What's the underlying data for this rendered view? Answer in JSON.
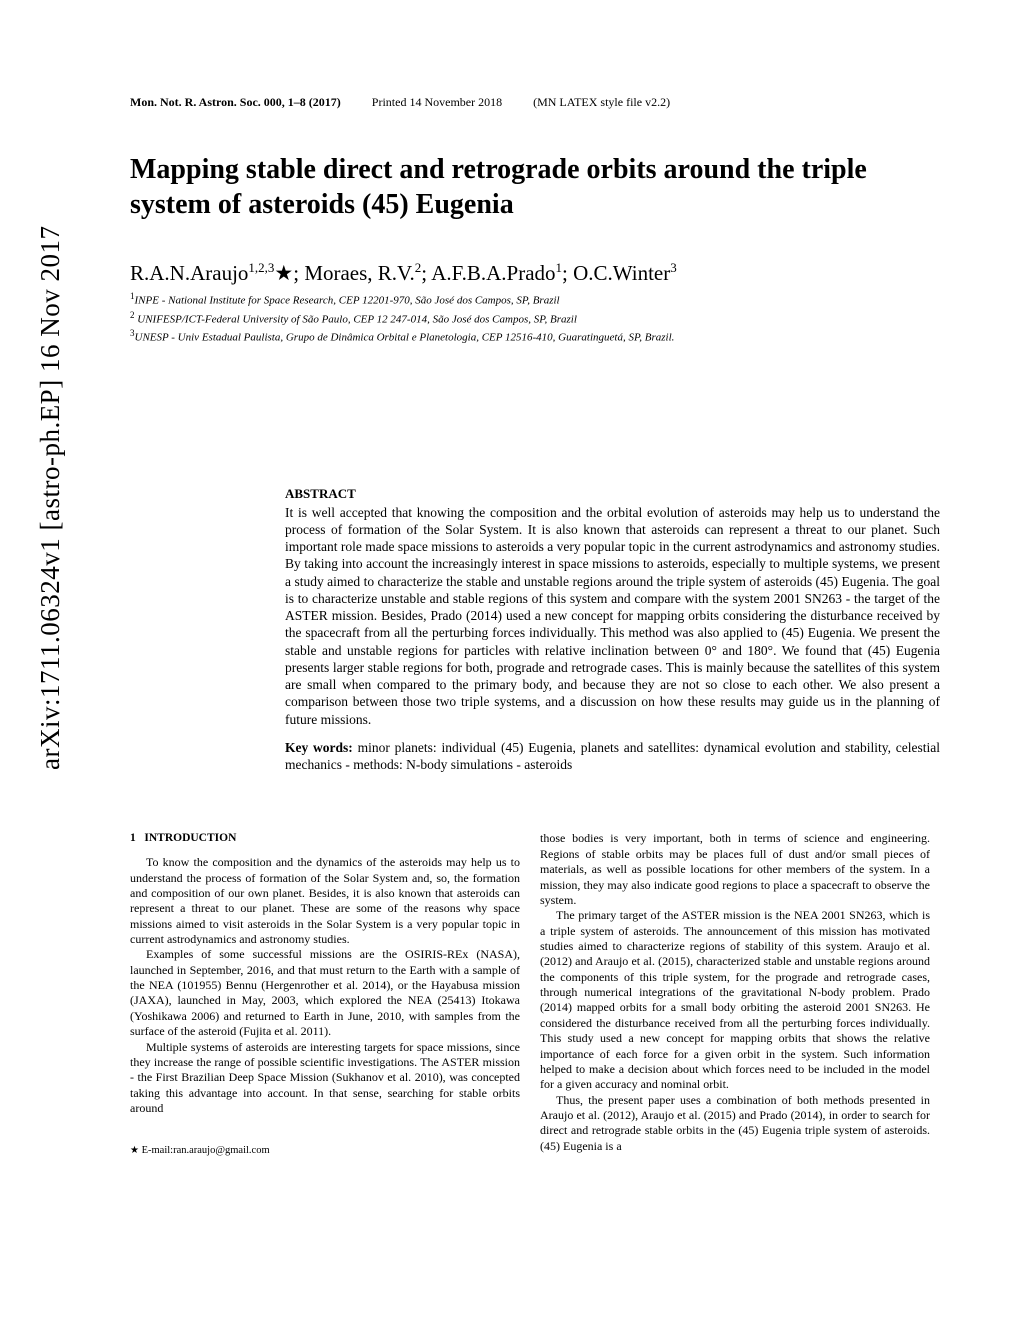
{
  "arxiv_stamp": "arXiv:1711.06324v1  [astro-ph.EP]  16 Nov 2017",
  "header": {
    "journal": "Mon. Not. R. Astron. Soc. 000, 1–8 (2017)",
    "printed": "Printed 14 November 2018",
    "style": "(MN LATEX style file v2.2)"
  },
  "title": "Mapping stable direct and retrograde orbits around the triple system of asteroids (45) Eugenia",
  "authors_html": "R.A.N.Araujo<sup>1,2,3</sup>*; Moraes, R.V.<sup>2</sup>; A.F.B.A.Prado<sup>1</sup>; O.C.Winter<sup>3</sup>",
  "affiliations": {
    "a1": "INPE - National Institute for Space Research, CEP 12201-970, São José dos Campos, SP, Brazil",
    "a2": " UNIFESP/ICT-Federal University of São Paulo, CEP 12 247-014, São José dos Campos, SP, Brazil",
    "a3": "UNESP - Univ Estadual Paulista, Grupo de Dinâmica Orbital e Planetologia, CEP 12516-410, Guaratinguetá, SP, Brazil."
  },
  "abstract": {
    "label": "ABSTRACT",
    "text": "It is well accepted that knowing the composition and the orbital evolution of asteroids may help us to understand the process of formation of the Solar System. It is also known that asteroids can represent a threat to our planet. Such important role made space missions to asteroids a very popular topic in the current astrodynamics and astronomy studies. By taking into account the increasingly interest in space missions to asteroids, especially to multiple systems, we present a study aimed to characterize the stable and unstable regions around the triple system of asteroids (45) Eugenia. The goal is to characterize unstable and stable regions of this system and compare with the system 2001 SN263 - the target of the ASTER mission. Besides, Prado (2014) used a new concept for mapping orbits considering the disturbance received by the spacecraft from all the perturbing forces individually. This method was also applied to (45) Eugenia. We present the stable and unstable regions for particles with relative inclination between 0° and 180°. We found that (45) Eugenia presents larger stable regions for both, prograde and retrograde cases. This is mainly because the satellites of this system are small when compared to the primary body, and because they are not so close to each other. We also present a comparison between those two triple systems, and a discussion on how these results may guide us in the planning of future missions."
  },
  "keywords": {
    "label": "Key words:",
    "text": " minor planets: individual (45) Eugenia, planets and satellites: dynamical evolution and stability, celestial mechanics - methods: N-body simulations - asteroids"
  },
  "section1": {
    "number": "1",
    "title": "INTRODUCTION"
  },
  "col1": {
    "p1": "To know the composition and the dynamics of the asteroids may help us to understand the process of formation of the Solar System and, so, the formation and composition of our own planet. Besides, it is also known that asteroids can represent a threat to our planet. These are some of the reasons why space missions aimed to visit asteroids in the Solar System is a very popular topic in current astrodynamics and astronomy studies.",
    "p2": "Examples of some successful missions are the OSIRIS-REx (NASA), launched in September, 2016, and that must return to the Earth with a sample of the NEA (101955) Bennu (Hergenrother et al. 2014), or the Hayabusa mission (JAXA), launched in May, 2003, which explored the NEA (25413) Itokawa (Yoshikawa 2006) and returned to Earth in June, 2010, with samples from the surface of the asteroid (Fujita et al. 2011).",
    "p3": "Multiple systems of asteroids are interesting targets for space missions, since they increase the range of possible scientific investigations. The ASTER mission - the First Brazilian Deep Space Mission (Sukhanov et al. 2010), was concepted taking this advantage into account. In that sense, searching for stable orbits around"
  },
  "col2": {
    "p1": "those bodies is very important, both in terms of science and engineering. Regions of stable orbits may be places full of dust and/or small pieces of materials, as well as possible locations for other members of the system. In a mission, they may also indicate good regions to place a spacecraft to observe the system.",
    "p2": "The primary target of the ASTER mission is the NEA 2001 SN263, which is a triple system of asteroids. The announcement of this mission has motivated studies aimed to characterize regions of stability of this system. Araujo et al. (2012) and Araujo et al. (2015), characterized stable and unstable regions around the components of this triple system, for the prograde and retrograde cases, through numerical integrations of the gravitational N-body problem. Prado (2014) mapped orbits for a small body orbiting the asteroid 2001 SN263. He considered the disturbance received from all the perturbing forces individually. This study used a new concept for mapping orbits that shows the relative importance of each force for a given orbit in the system. Such information helped to make a decision about which forces need to be included in the model for a given accuracy and nominal orbit.",
    "p3": "Thus, the present paper uses a combination of both methods presented in Araujo et al. (2012), Araujo et al. (2015) and Prado (2014), in order to search for direct and retrograde stable orbits in the (45) Eugenia triple system of asteroids. (45) Eugenia is a"
  },
  "footnote": {
    "star": "★",
    "text": " E-mail:ran.araujo@gmail.com"
  }
}
